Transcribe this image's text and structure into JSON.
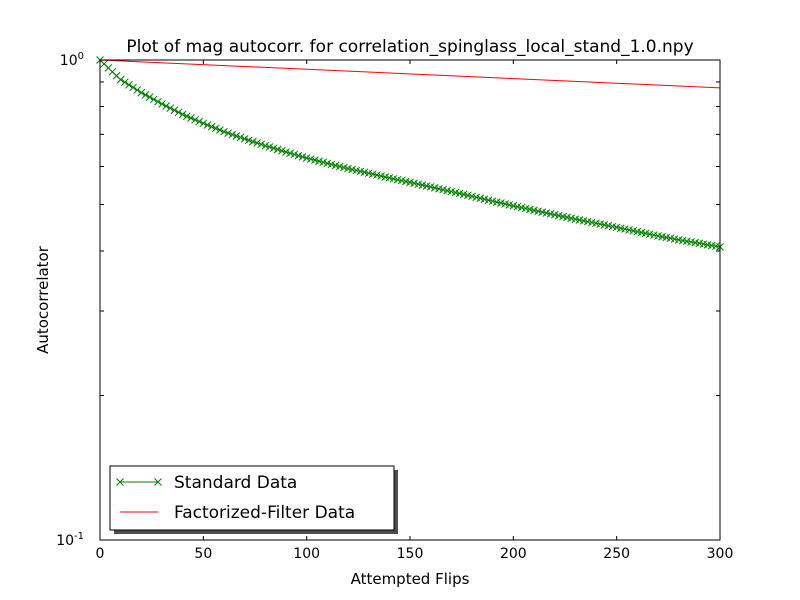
{
  "chart_data": {
    "type": "line",
    "title": "Plot of mag autocorr. for correlation_spinglass_local_stand_1.0.npy",
    "xlabel": "Attempted Flips",
    "ylabel": "Autocorrelator",
    "xlim": [
      0,
      300
    ],
    "ylim": [
      0.1,
      1.0
    ],
    "yscale": "log",
    "grid": false,
    "legend_position": "lower-left",
    "x_ticks": [
      {
        "value": 0,
        "label": "0"
      },
      {
        "value": 50,
        "label": "50"
      },
      {
        "value": 100,
        "label": "100"
      },
      {
        "value": 150,
        "label": "150"
      },
      {
        "value": 200,
        "label": "200"
      },
      {
        "value": 250,
        "label": "250"
      },
      {
        "value": 300,
        "label": "300"
      }
    ],
    "y_ticks": [
      {
        "value": 0.1,
        "base": "10",
        "exp": "-1"
      },
      {
        "value": 1.0,
        "base": "10",
        "exp": "0"
      }
    ],
    "y_minor_ticks": [
      0.2,
      0.3,
      0.4,
      0.5,
      0.6,
      0.7,
      0.8,
      0.9
    ],
    "series": [
      {
        "name": "Standard Data",
        "color": "#008000",
        "marker": "x",
        "x_start": 0,
        "x_step": 2,
        "x_end": 300,
        "points": [
          [
            0,
            1.0
          ],
          [
            10,
            0.91
          ],
          [
            20,
            0.855
          ],
          [
            30,
            0.81
          ],
          [
            40,
            0.77
          ],
          [
            50,
            0.738
          ],
          [
            60,
            0.709
          ],
          [
            70,
            0.685
          ],
          [
            80,
            0.663
          ],
          [
            90,
            0.643
          ],
          [
            100,
            0.625
          ],
          [
            110,
            0.609
          ],
          [
            120,
            0.594
          ],
          [
            130,
            0.581
          ],
          [
            140,
            0.568
          ],
          [
            150,
            0.556
          ],
          [
            160,
            0.544
          ],
          [
            170,
            0.532
          ],
          [
            180,
            0.52
          ],
          [
            190,
            0.508
          ],
          [
            200,
            0.497
          ],
          [
            210,
            0.486
          ],
          [
            220,
            0.476
          ],
          [
            230,
            0.466
          ],
          [
            240,
            0.457
          ],
          [
            250,
            0.448
          ],
          [
            260,
            0.439
          ],
          [
            270,
            0.43
          ],
          [
            280,
            0.422
          ],
          [
            290,
            0.415
          ],
          [
            300,
            0.408
          ]
        ]
      },
      {
        "name": "Factorized-Filter Data",
        "color": "#ff0000",
        "marker": "none",
        "points": [
          [
            0,
            1.0
          ],
          [
            300,
            0.875
          ]
        ]
      }
    ]
  }
}
